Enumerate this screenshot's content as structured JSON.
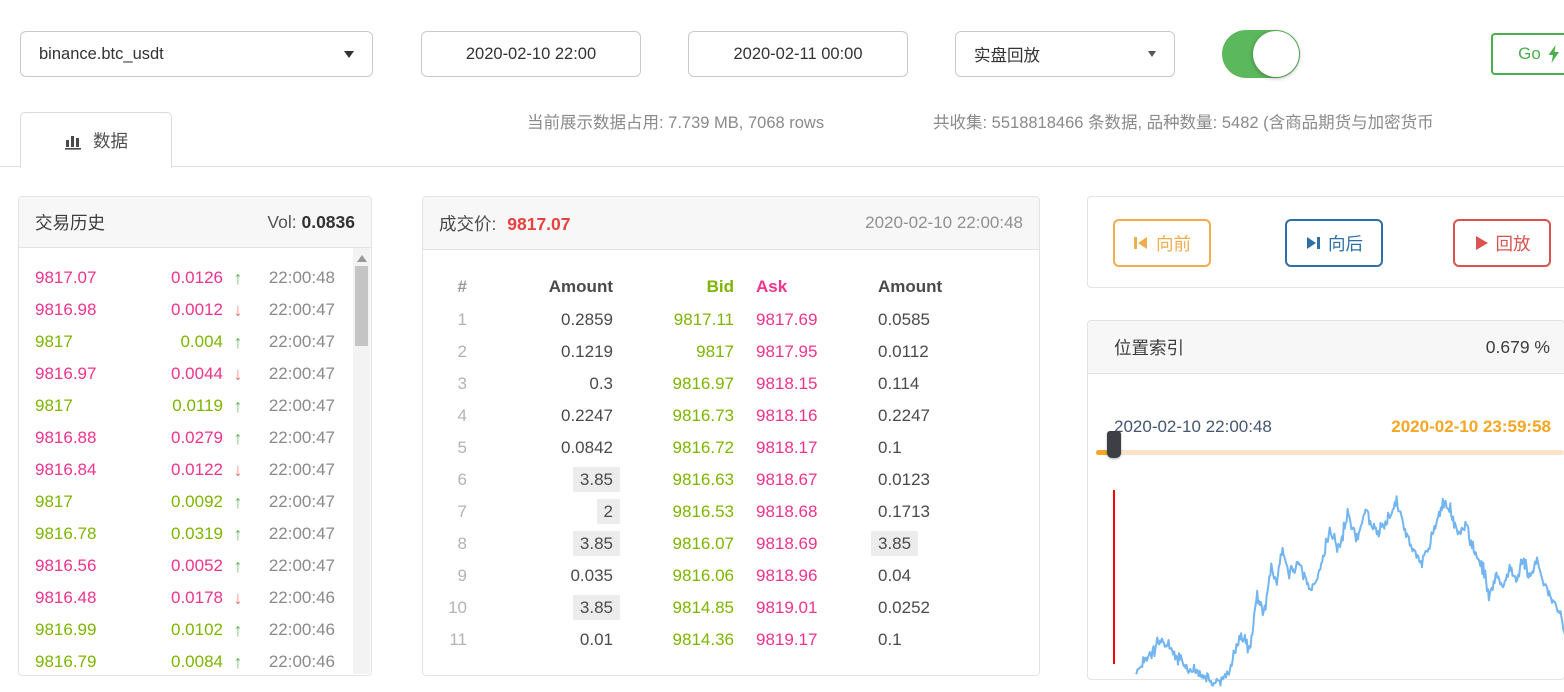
{
  "toolbar": {
    "symbol": "binance.btc_usdt",
    "start_time": "2020-02-10 22:00",
    "end_time": "2020-02-11 00:00",
    "mode": "实盘回放",
    "toggle_on": true,
    "go_label": "Go"
  },
  "tabs": [
    {
      "label": "数据",
      "icon": "bar-chart-icon",
      "active": true
    }
  ],
  "status": {
    "current_usage": "当前展示数据占用: 7.739 MB, 7068 rows",
    "collected": "共收集: 5518818466 条数据, 品种数量: 5482 (含商品期货与加密货币"
  },
  "trade_history": {
    "title": "交易历史",
    "vol_label": "Vol:",
    "vol_value": "0.0836",
    "rows": [
      {
        "price": "9817.07",
        "amount": "0.0126",
        "dir": "up",
        "side": "sell",
        "time": "22:00:48"
      },
      {
        "price": "9816.98",
        "amount": "0.0012",
        "dir": "down",
        "side": "sell",
        "time": "22:00:47"
      },
      {
        "price": "9817",
        "amount": "0.004",
        "dir": "up",
        "side": "buy",
        "time": "22:00:47"
      },
      {
        "price": "9816.97",
        "amount": "0.0044",
        "dir": "down",
        "side": "sell",
        "time": "22:00:47"
      },
      {
        "price": "9817",
        "amount": "0.0119",
        "dir": "up",
        "side": "buy",
        "time": "22:00:47"
      },
      {
        "price": "9816.88",
        "amount": "0.0279",
        "dir": "up",
        "side": "sell",
        "time": "22:00:47"
      },
      {
        "price": "9816.84",
        "amount": "0.0122",
        "dir": "down",
        "side": "sell",
        "time": "22:00:47"
      },
      {
        "price": "9817",
        "amount": "0.0092",
        "dir": "up",
        "side": "buy",
        "time": "22:00:47"
      },
      {
        "price": "9816.78",
        "amount": "0.0319",
        "dir": "up",
        "side": "buy",
        "time": "22:00:47"
      },
      {
        "price": "9816.56",
        "amount": "0.0052",
        "dir": "up",
        "side": "sell",
        "time": "22:00:47"
      },
      {
        "price": "9816.48",
        "amount": "0.0178",
        "dir": "down",
        "side": "sell",
        "time": "22:00:46"
      },
      {
        "price": "9816.99",
        "amount": "0.0102",
        "dir": "up",
        "side": "buy",
        "time": "22:00:46"
      },
      {
        "price": "9816.79",
        "amount": "0.0084",
        "dir": "up",
        "side": "buy",
        "time": "22:00:46"
      }
    ]
  },
  "order_book": {
    "price_label": "成交价:",
    "price_value": "9817.07",
    "timestamp": "2020-02-10 22:00:48",
    "columns": [
      "#",
      "Amount",
      "Bid",
      "Ask",
      "Amount"
    ],
    "rows": [
      {
        "n": "1",
        "bid_amount": "0.2859",
        "bid": "9817.11",
        "ask": "9817.69",
        "ask_amount": "0.0585",
        "bid_hl": false,
        "ask_hl": false
      },
      {
        "n": "2",
        "bid_amount": "0.1219",
        "bid": "9817",
        "ask": "9817.95",
        "ask_amount": "0.0112",
        "bid_hl": false,
        "ask_hl": false
      },
      {
        "n": "3",
        "bid_amount": "0.3",
        "bid": "9816.97",
        "ask": "9818.15",
        "ask_amount": "0.114",
        "bid_hl": false,
        "ask_hl": false
      },
      {
        "n": "4",
        "bid_amount": "0.2247",
        "bid": "9816.73",
        "ask": "9818.16",
        "ask_amount": "0.2247",
        "bid_hl": false,
        "ask_hl": false
      },
      {
        "n": "5",
        "bid_amount": "0.0842",
        "bid": "9816.72",
        "ask": "9818.17",
        "ask_amount": "0.1",
        "bid_hl": false,
        "ask_hl": false
      },
      {
        "n": "6",
        "bid_amount": "3.85",
        "bid": "9816.63",
        "ask": "9818.67",
        "ask_amount": "0.0123",
        "bid_hl": true,
        "ask_hl": false
      },
      {
        "n": "7",
        "bid_amount": "2",
        "bid": "9816.53",
        "ask": "9818.68",
        "ask_amount": "0.1713",
        "bid_hl": true,
        "ask_hl": false
      },
      {
        "n": "8",
        "bid_amount": "3.85",
        "bid": "9816.07",
        "ask": "9818.69",
        "ask_amount": "3.85",
        "bid_hl": true,
        "ask_hl": true
      },
      {
        "n": "9",
        "bid_amount": "0.035",
        "bid": "9816.06",
        "ask": "9818.96",
        "ask_amount": "0.04",
        "bid_hl": false,
        "ask_hl": false
      },
      {
        "n": "10",
        "bid_amount": "3.85",
        "bid": "9814.85",
        "ask": "9819.01",
        "ask_amount": "0.0252",
        "bid_hl": true,
        "ask_hl": false
      },
      {
        "n": "11",
        "bid_amount": "0.01",
        "bid": "9814.36",
        "ask": "9819.17",
        "ask_amount": "0.1",
        "bid_hl": false,
        "ask_hl": false
      }
    ]
  },
  "playback": {
    "prev_label": "向前",
    "next_label": "向后",
    "replay_label": "回放"
  },
  "position_index": {
    "title": "位置索引",
    "percent": "0.679 %",
    "current_time": "2020-02-10 22:00:48",
    "end_time": "2020-02-10 23:59:58",
    "slider_percent": 0.679
  },
  "chart_data": {
    "type": "line",
    "name": "position-price-preview",
    "x_range": [
      "2020-02-10 22:00:48",
      "2020-02-10 23:59:58"
    ],
    "axes_hidden": true,
    "marker_x_norm": 0.02,
    "anchors_norm": [
      [
        0.07,
        0.92
      ],
      [
        0.1,
        0.84
      ],
      [
        0.125,
        0.76
      ],
      [
        0.15,
        0.83
      ],
      [
        0.18,
        0.9
      ],
      [
        0.21,
        0.94
      ],
      [
        0.24,
        0.99
      ],
      [
        0.27,
        0.93
      ],
      [
        0.295,
        0.74
      ],
      [
        0.315,
        0.82
      ],
      [
        0.33,
        0.55
      ],
      [
        0.345,
        0.64
      ],
      [
        0.36,
        0.4
      ],
      [
        0.372,
        0.48
      ],
      [
        0.385,
        0.3
      ],
      [
        0.4,
        0.43
      ],
      [
        0.42,
        0.37
      ],
      [
        0.445,
        0.52
      ],
      [
        0.465,
        0.42
      ],
      [
        0.487,
        0.22
      ],
      [
        0.505,
        0.32
      ],
      [
        0.525,
        0.14
      ],
      [
        0.545,
        0.26
      ],
      [
        0.565,
        0.11
      ],
      [
        0.585,
        0.23
      ],
      [
        0.605,
        0.19
      ],
      [
        0.63,
        0.07
      ],
      [
        0.648,
        0.22
      ],
      [
        0.665,
        0.32
      ],
      [
        0.682,
        0.38
      ],
      [
        0.7,
        0.3
      ],
      [
        0.718,
        0.16
      ],
      [
        0.733,
        0.07
      ],
      [
        0.75,
        0.14
      ],
      [
        0.762,
        0.24
      ],
      [
        0.778,
        0.19
      ],
      [
        0.795,
        0.32
      ],
      [
        0.815,
        0.4
      ],
      [
        0.828,
        0.55
      ],
      [
        0.845,
        0.43
      ],
      [
        0.858,
        0.5
      ],
      [
        0.872,
        0.4
      ],
      [
        0.887,
        0.46
      ],
      [
        0.9,
        0.37
      ],
      [
        0.915,
        0.44
      ],
      [
        0.93,
        0.36
      ],
      [
        0.948,
        0.49
      ],
      [
        0.963,
        0.56
      ],
      [
        0.98,
        0.64
      ],
      [
        1.0,
        0.8
      ]
    ]
  },
  "colors": {
    "buy_green": "#7db500",
    "sell_pink": "#f0338d",
    "up_green": "#5cb85c",
    "down_red": "#f4736e",
    "last_price_red": "#e64340",
    "btn_orange": "#f0ad4e",
    "btn_blue": "#2e6fa8",
    "btn_red": "#d9534f",
    "go_green": "#4cae4c",
    "toggle_green": "#5cb85c",
    "slider_orange": "#f5a623",
    "chart_blue": "#72b5f1",
    "marker_red": "#ff0000"
  }
}
